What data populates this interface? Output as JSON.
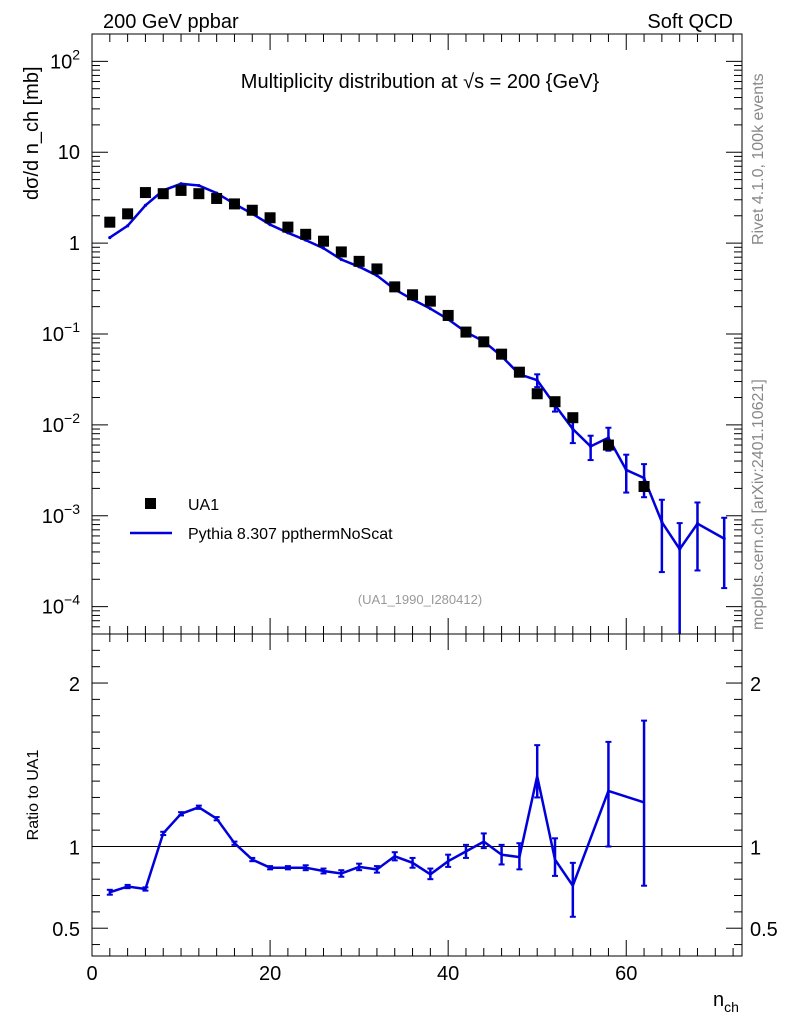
{
  "header": {
    "left_label": "200 GeV ppbar",
    "right_label": "Soft QCD"
  },
  "side_labels": {
    "rivet": "Rivet 4.1.0,  100k events",
    "mcplots": "mcplots.cern.ch [arXiv:2401.10621]"
  },
  "chart_data": [
    {
      "type": "scatter",
      "title": "Multiplicity distribution at √s = 200 {GeV}",
      "analysis_id": "(UA1_1990_I280412)",
      "xlabel": "n_ch",
      "ylabel": "dσ/d n_ch [mb]",
      "yscale": "log",
      "xlim": [
        0,
        73
      ],
      "ylim": [
        5e-05,
        200
      ],
      "y_ticks": [
        {
          "value": 0.0001,
          "base": "10",
          "exp": "−4"
        },
        {
          "value": 0.001,
          "base": "10",
          "exp": "−3"
        },
        {
          "value": 0.01,
          "base": "10",
          "exp": "−2"
        },
        {
          "value": 0.1,
          "base": "10",
          "exp": "−1"
        },
        {
          "value": 1,
          "base": "1",
          "exp": ""
        },
        {
          "value": 10,
          "base": "10",
          "exp": ""
        },
        {
          "value": 100,
          "base": "10",
          "exp": "2"
        }
      ],
      "legend_position": "bottom-left",
      "series": [
        {
          "name": "UA1",
          "style": "markers",
          "color": "#000000",
          "points": [
            {
              "x": 2,
              "y": 1.7
            },
            {
              "x": 4,
              "y": 2.1
            },
            {
              "x": 6,
              "y": 3.6
            },
            {
              "x": 8,
              "y": 3.5
            },
            {
              "x": 10,
              "y": 3.8
            },
            {
              "x": 12,
              "y": 3.5
            },
            {
              "x": 14,
              "y": 3.1
            },
            {
              "x": 16,
              "y": 2.7
            },
            {
              "x": 18,
              "y": 2.3
            },
            {
              "x": 20,
              "y": 1.9
            },
            {
              "x": 22,
              "y": 1.5
            },
            {
              "x": 24,
              "y": 1.25
            },
            {
              "x": 26,
              "y": 1.05
            },
            {
              "x": 28,
              "y": 0.8
            },
            {
              "x": 30,
              "y": 0.63
            },
            {
              "x": 32,
              "y": 0.52
            },
            {
              "x": 34,
              "y": 0.33
            },
            {
              "x": 36,
              "y": 0.27
            },
            {
              "x": 38,
              "y": 0.23
            },
            {
              "x": 40,
              "y": 0.16
            },
            {
              "x": 42,
              "y": 0.105
            },
            {
              "x": 44,
              "y": 0.082
            },
            {
              "x": 46,
              "y": 0.06
            },
            {
              "x": 48,
              "y": 0.038
            },
            {
              "x": 50,
              "y": 0.022
            },
            {
              "x": 52,
              "y": 0.018
            },
            {
              "x": 54,
              "y": 0.012
            },
            {
              "x": 58,
              "y": 0.006
            },
            {
              "x": 62,
              "y": 0.0021
            }
          ]
        },
        {
          "name": "Pythia 8.307 ppthermNoScat",
          "style": "line",
          "color": "#0000dd",
          "points": [
            {
              "x": 2,
              "y": 1.15
            },
            {
              "x": 4,
              "y": 1.55
            },
            {
              "x": 6,
              "y": 2.6
            },
            {
              "x": 8,
              "y": 3.8
            },
            {
              "x": 10,
              "y": 4.5
            },
            {
              "x": 12,
              "y": 4.3
            },
            {
              "x": 14,
              "y": 3.55
            },
            {
              "x": 16,
              "y": 2.7
            },
            {
              "x": 18,
              "y": 2.1
            },
            {
              "x": 20,
              "y": 1.6
            },
            {
              "x": 22,
              "y": 1.3
            },
            {
              "x": 24,
              "y": 1.08
            },
            {
              "x": 26,
              "y": 0.88
            },
            {
              "x": 28,
              "y": 0.66
            },
            {
              "x": 30,
              "y": 0.55
            },
            {
              "x": 32,
              "y": 0.44
            },
            {
              "x": 34,
              "y": 0.31
            },
            {
              "x": 36,
              "y": 0.24
            },
            {
              "x": 38,
              "y": 0.19
            },
            {
              "x": 40,
              "y": 0.145
            },
            {
              "x": 42,
              "y": 0.105
            },
            {
              "x": 44,
              "y": 0.083
            },
            {
              "x": 46,
              "y": 0.057
            },
            {
              "x": 48,
              "y": 0.036
            },
            {
              "x": 50,
              "y": 0.031
            },
            {
              "x": 52,
              "y": 0.0165
            },
            {
              "x": 54,
              "y": 0.009
            },
            {
              "x": 56,
              "y": 0.0058
            },
            {
              "x": 58,
              "y": 0.0072
            },
            {
              "x": 60,
              "y": 0.0032
            },
            {
              "x": 62,
              "y": 0.0026
            },
            {
              "x": 64,
              "y": 0.00085
            },
            {
              "x": 66,
              "y": 0.00043
            },
            {
              "x": 68,
              "y": 0.00082
            },
            {
              "x": 71,
              "y": 0.00056
            }
          ],
          "errors": [
            {
              "x": 50,
              "lo": 0.026,
              "hi": 0.036
            },
            {
              "x": 52,
              "lo": 0.014,
              "hi": 0.019
            },
            {
              "x": 54,
              "lo": 0.0063,
              "hi": 0.0118
            },
            {
              "x": 56,
              "lo": 0.0041,
              "hi": 0.0076
            },
            {
              "x": 58,
              "lo": 0.0052,
              "hi": 0.0093
            },
            {
              "x": 60,
              "lo": 0.0018,
              "hi": 0.0047
            },
            {
              "x": 62,
              "lo": 0.0016,
              "hi": 0.0037
            },
            {
              "x": 64,
              "lo": 0.00024,
              "hi": 0.0015
            },
            {
              "x": 66,
              "lo": 4e-05,
              "hi": 0.00083
            },
            {
              "x": 68,
              "lo": 0.00025,
              "hi": 0.0014
            },
            {
              "x": 71,
              "lo": 0.00016,
              "hi": 0.00095
            }
          ]
        }
      ]
    },
    {
      "type": "line",
      "ylabel": "Ratio to UA1",
      "xlabel": "n_ch",
      "xlim": [
        0,
        73
      ],
      "ylim": [
        0.33,
        2.3
      ],
      "reference_line": 1,
      "y_ticks": [
        0.5,
        1,
        2
      ],
      "y_tick_labels": [
        "0.5",
        "1",
        "2"
      ],
      "x_ticks": [
        0,
        20,
        40,
        60
      ],
      "x_tick_labels": [
        "0",
        "20",
        "40",
        "60"
      ],
      "series": [
        {
          "name": "Pythia 8.307 ppthermNoScat / UA1",
          "color": "#0000dd",
          "points": [
            {
              "x": 2,
              "y": 0.72,
              "lo": 0.705,
              "hi": 0.735
            },
            {
              "x": 4,
              "y": 0.755,
              "lo": 0.745,
              "hi": 0.765
            },
            {
              "x": 6,
              "y": 0.74,
              "lo": 0.73,
              "hi": 0.75
            },
            {
              "x": 8,
              "y": 1.08,
              "lo": 1.07,
              "hi": 1.09
            },
            {
              "x": 10,
              "y": 1.2,
              "lo": 1.19,
              "hi": 1.21
            },
            {
              "x": 12,
              "y": 1.24,
              "lo": 1.23,
              "hi": 1.25
            },
            {
              "x": 14,
              "y": 1.17,
              "lo": 1.16,
              "hi": 1.18
            },
            {
              "x": 16,
              "y": 1.02,
              "lo": 1.01,
              "hi": 1.03
            },
            {
              "x": 18,
              "y": 0.92,
              "lo": 0.91,
              "hi": 0.93
            },
            {
              "x": 20,
              "y": 0.87,
              "lo": 0.86,
              "hi": 0.88
            },
            {
              "x": 22,
              "y": 0.87,
              "lo": 0.86,
              "hi": 0.88
            },
            {
              "x": 24,
              "y": 0.87,
              "lo": 0.855,
              "hi": 0.885
            },
            {
              "x": 26,
              "y": 0.85,
              "lo": 0.835,
              "hi": 0.865
            },
            {
              "x": 28,
              "y": 0.835,
              "lo": 0.815,
              "hi": 0.855
            },
            {
              "x": 30,
              "y": 0.875,
              "lo": 0.855,
              "hi": 0.895
            },
            {
              "x": 32,
              "y": 0.86,
              "lo": 0.84,
              "hi": 0.88
            },
            {
              "x": 34,
              "y": 0.94,
              "lo": 0.915,
              "hi": 0.965
            },
            {
              "x": 36,
              "y": 0.9,
              "lo": 0.87,
              "hi": 0.93
            },
            {
              "x": 38,
              "y": 0.83,
              "lo": 0.8,
              "hi": 0.865
            },
            {
              "x": 40,
              "y": 0.91,
              "lo": 0.875,
              "hi": 0.95
            },
            {
              "x": 42,
              "y": 0.97,
              "lo": 0.93,
              "hi": 1.01
            },
            {
              "x": 44,
              "y": 1.03,
              "lo": 0.99,
              "hi": 1.08
            },
            {
              "x": 46,
              "y": 0.95,
              "lo": 0.89,
              "hi": 1.01
            },
            {
              "x": 48,
              "y": 0.935,
              "lo": 0.86,
              "hi": 1.02
            },
            {
              "x": 50,
              "y": 1.43,
              "lo": 1.3,
              "hi": 1.62
            },
            {
              "x": 52,
              "y": 0.92,
              "lo": 0.82,
              "hi": 1.05
            },
            {
              "x": 54,
              "y": 0.76,
              "lo": 0.57,
              "hi": 0.9
            },
            {
              "x": 58,
              "y": 1.34,
              "lo": 1.0,
              "hi": 1.64
            },
            {
              "x": 62,
              "y": 1.27,
              "lo": 0.76,
              "hi": 1.77
            }
          ]
        }
      ]
    }
  ]
}
